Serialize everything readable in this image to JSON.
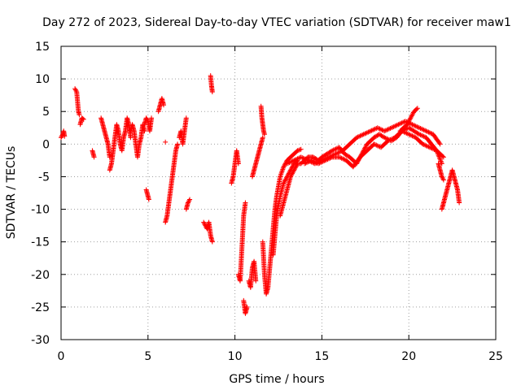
{
  "chart_data": {
    "type": "scatter",
    "title": "Day 272 of 2023, Sidereal Day-to-day VTEC variation (SDTVAR) for receiver maw1",
    "xlabel": "GPS time / hours",
    "ylabel": "SDTVAR / TECUs",
    "xlim": [
      0,
      25
    ],
    "ylim": [
      -30,
      15
    ],
    "xticks": [
      0,
      5,
      10,
      15,
      20,
      25
    ],
    "yticks": [
      -30,
      -25,
      -20,
      -15,
      -10,
      -5,
      0,
      5,
      10,
      15
    ],
    "grid": true,
    "marker": "plus",
    "color": "#ff0000",
    "series": [
      {
        "name": "SDTVAR",
        "segments": [
          {
            "x": [
              0.0,
              0.1,
              0.15,
              0.2
            ],
            "y": [
              1.0,
              1.5,
              2.0,
              1.2
            ]
          },
          {
            "x": [
              0.8,
              0.9,
              1.0,
              1.05
            ],
            "y": [
              8.5,
              8.0,
              5.0,
              4.5
            ]
          },
          {
            "x": [
              1.1,
              1.2,
              1.3
            ],
            "y": [
              3.0,
              4.0,
              3.8
            ]
          },
          {
            "x": [
              1.8,
              1.9
            ],
            "y": [
              -1.0,
              -2.0
            ]
          },
          {
            "x": [
              2.3,
              2.4,
              2.5,
              2.6,
              2.7,
              2.8
            ],
            "y": [
              4.0,
              3.0,
              2.0,
              1.0,
              0.0,
              -2.0
            ]
          },
          {
            "x": [
              2.8,
              2.9,
              3.0,
              3.1,
              3.2,
              3.3,
              3.4,
              3.5,
              3.6,
              3.7,
              3.8,
              3.9,
              4.0
            ],
            "y": [
              -4.0,
              -3.0,
              -1.0,
              1.0,
              3.0,
              2.0,
              0.0,
              -1.0,
              1.0,
              2.0,
              4.0,
              3.0,
              1.0
            ]
          },
          {
            "x": [
              4.0,
              4.1,
              4.2,
              4.3,
              4.4,
              4.5,
              4.6,
              4.7,
              4.8
            ],
            "y": [
              2.0,
              3.0,
              2.0,
              0.0,
              -2.0,
              0.0,
              1.0,
              3.0,
              2.0
            ]
          },
          {
            "x": [
              4.8,
              4.9,
              5.0,
              5.1,
              5.2
            ],
            "y": [
              3.0,
              4.0,
              3.5,
              2.0,
              4.0
            ]
          },
          {
            "x": [
              4.9,
              5.0,
              5.05
            ],
            "y": [
              -7.0,
              -8.0,
              -8.5
            ]
          },
          {
            "x": [
              5.6,
              5.7,
              5.8,
              5.9
            ],
            "y": [
              5.0,
              6.0,
              7.0,
              6.0
            ]
          },
          {
            "x": [
              6.0
            ],
            "y": [
              0.3
            ]
          },
          {
            "x": [
              6.0,
              6.1,
              6.2,
              6.3,
              6.4,
              6.5,
              6.6,
              6.7
            ],
            "y": [
              -12.0,
              -11.0,
              -9.0,
              -7.0,
              -5.0,
              -3.0,
              -1.0,
              0.0
            ]
          },
          {
            "x": [
              6.8,
              6.9,
              7.0,
              7.1,
              7.2
            ],
            "y": [
              1.0,
              2.0,
              0.0,
              2.0,
              4.0
            ]
          },
          {
            "x": [
              7.2,
              7.3,
              7.4
            ],
            "y": [
              -10.0,
              -9.0,
              -8.5
            ]
          },
          {
            "x": [
              8.2,
              8.3,
              8.4,
              8.5,
              8.6,
              8.7
            ],
            "y": [
              -12.0,
              -12.5,
              -13.0,
              -12.0,
              -14.0,
              -15.0
            ]
          },
          {
            "x": [
              8.6,
              8.65,
              8.7
            ],
            "y": [
              10.5,
              9.0,
              8.0
            ]
          },
          {
            "x": [
              9.8,
              9.9,
              10.0,
              10.1,
              10.2
            ],
            "y": [
              -6.0,
              -5.0,
              -3.0,
              -1.0,
              -3.0
            ]
          },
          {
            "x": [
              10.2,
              10.3,
              10.4,
              10.5,
              10.6
            ],
            "y": [
              -20.0,
              -21.0,
              -16.0,
              -11.0,
              -9.0
            ]
          },
          {
            "x": [
              10.5,
              10.6,
              10.7
            ],
            "y": [
              -24.0,
              -26.0,
              -25.0
            ]
          },
          {
            "x": [
              10.8,
              10.9,
              11.0,
              11.1,
              11.2
            ],
            "y": [
              -21.0,
              -22.0,
              -19.0,
              -18.0,
              -21.0
            ]
          },
          {
            "x": [
              11.0,
              11.1,
              11.2,
              11.3,
              11.4,
              11.5,
              11.6
            ],
            "y": [
              -5.0,
              -4.0,
              -3.0,
              -2.0,
              -1.0,
              0.0,
              1.0
            ]
          },
          {
            "x": [
              11.5,
              11.55,
              11.6,
              11.65,
              11.7
            ],
            "y": [
              5.8,
              4.0,
              3.0,
              2.0,
              1.5
            ]
          },
          {
            "x": [
              11.6,
              11.7,
              11.8,
              11.9,
              12.0,
              12.1,
              12.2,
              12.3,
              12.4,
              12.6,
              12.8,
              13.0,
              13.2,
              13.4,
              13.6,
              13.8
            ],
            "y": [
              -15.0,
              -20.0,
              -23.0,
              -22.0,
              -19.0,
              -16.0,
              -13.0,
              -10.0,
              -8.0,
              -5.0,
              -3.5,
              -2.5,
              -2.0,
              -1.5,
              -1.0,
              -0.8
            ]
          },
          {
            "x": [
              12.2,
              12.3,
              12.4,
              12.6,
              12.8,
              13.0,
              13.2,
              13.4,
              13.6
            ],
            "y": [
              -17.0,
              -14.0,
              -11.0,
              -8.0,
              -6.0,
              -5.0,
              -4.0,
              -3.0,
              -2.5
            ]
          },
          {
            "x": [
              12.6,
              12.8,
              13.0,
              13.2,
              13.4,
              13.6,
              13.8,
              14.0,
              14.2,
              14.5,
              14.8,
              15.0,
              15.3,
              15.6,
              16.0,
              16.3,
              16.6,
              17.0,
              17.3,
              17.6,
              18.0,
              18.3,
              18.6,
              19.0,
              19.3,
              19.6,
              20.0,
              20.3,
              20.6,
              21.0,
              21.3,
              21.6,
              21.9
            ],
            "y": [
              -11.0,
              -9.0,
              -7.0,
              -5.0,
              -4.0,
              -3.0,
              -3.0,
              -2.5,
              -2.0,
              -2.0,
              -2.5,
              -2.0,
              -1.5,
              -1.0,
              -0.5,
              -1.5,
              -2.0,
              -3.0,
              -1.5,
              0.0,
              1.0,
              1.5,
              1.0,
              0.5,
              1.0,
              2.0,
              2.5,
              2.0,
              1.5,
              1.0,
              0.0,
              -1.0,
              -3.0
            ]
          },
          {
            "x": [
              13.0,
              13.4,
              13.8,
              14.2,
              14.6,
              15.0,
              15.4,
              15.8,
              16.2,
              16.6,
              17.0,
              17.4,
              17.8,
              18.2,
              18.6,
              19.0,
              19.4,
              19.8,
              20.2,
              20.6,
              21.0,
              21.4,
              21.8
            ],
            "y": [
              -3.0,
              -2.5,
              -2.0,
              -2.5,
              -3.0,
              -2.5,
              -2.0,
              -1.5,
              -1.0,
              0.0,
              1.0,
              1.5,
              2.0,
              2.5,
              2.0,
              2.5,
              3.0,
              3.5,
              3.0,
              2.5,
              2.0,
              1.5,
              0.0
            ]
          },
          {
            "x": [
              14.0,
              14.4,
              14.8,
              15.2,
              15.6,
              16.0,
              16.4,
              16.8,
              17.2,
              17.6,
              18.0,
              18.4,
              18.8,
              19.2,
              19.6,
              20.0,
              20.4,
              20.8,
              21.2,
              21.6,
              22.0
            ],
            "y": [
              -3.0,
              -2.5,
              -3.0,
              -2.5,
              -2.0,
              -2.0,
              -2.5,
              -3.5,
              -2.0,
              -1.0,
              0.0,
              -0.5,
              0.5,
              1.0,
              2.0,
              1.5,
              1.0,
              0.0,
              -0.5,
              -1.0,
              -2.0
            ]
          },
          {
            "x": [
              19.5,
              19.7,
              19.9,
              20.1,
              20.3,
              20.5
            ],
            "y": [
              2.0,
              2.5,
              3.0,
              4.0,
              5.0,
              5.5
            ]
          },
          {
            "x": [
              21.7,
              21.8,
              21.9,
              22.0
            ],
            "y": [
              -3.0,
              -4.0,
              -5.0,
              -5.5
            ]
          },
          {
            "x": [
              21.9,
              22.0,
              22.1,
              22.2,
              22.3,
              22.4,
              22.5,
              22.6,
              22.7,
              22.8,
              22.9
            ],
            "y": [
              -10.0,
              -9.0,
              -8.0,
              -7.0,
              -6.0,
              -5.0,
              -4.0,
              -5.0,
              -6.0,
              -7.0,
              -9.0
            ]
          }
        ]
      }
    ]
  }
}
